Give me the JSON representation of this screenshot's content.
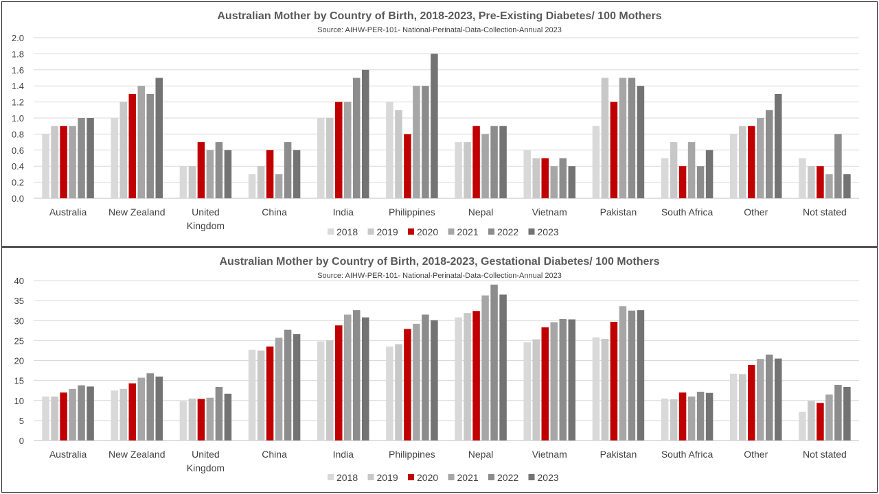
{
  "series_names": [
    "2018",
    "2019",
    "2020",
    "2021",
    "2022",
    "2023"
  ],
  "series_colors": [
    "#d9d9d9",
    "#c8c8c8",
    "#c00000",
    "#a6a6a6",
    "#8c8c8c",
    "#737373"
  ],
  "chart_data": [
    {
      "type": "bar",
      "title": "Australian Mother by Country of Birth, 2018-2023, Pre-Existing Diabetes/ 100 Mothers",
      "subtitle": "Source: AIHW-PER-101- National-Perinatal-Data-Collection-Annual 2023",
      "categories": [
        "Australia",
        "New Zealand",
        "United Kingdom",
        "China",
        "India",
        "Philippines",
        "Nepal",
        "Vietnam",
        "Pakistan",
        "South Africa",
        "Other",
        "Not stated"
      ],
      "category_lines": [
        [
          "Australia"
        ],
        [
          "New Zealand"
        ],
        [
          "United",
          "Kingdom"
        ],
        [
          "China"
        ],
        [
          "India"
        ],
        [
          "Philippines"
        ],
        [
          "Nepal"
        ],
        [
          "Vietnam"
        ],
        [
          "Pakistan"
        ],
        [
          "South Africa"
        ],
        [
          "Other"
        ],
        [
          "Not stated"
        ]
      ],
      "ylim": [
        0,
        2.0
      ],
      "yticks": [
        "0.0",
        "0.2",
        "0.4",
        "0.6",
        "0.8",
        "1.0",
        "1.2",
        "1.4",
        "1.6",
        "1.8",
        "2.0"
      ],
      "legend": "bottom",
      "series": [
        {
          "name": "2018",
          "values": [
            0.8,
            1.0,
            0.4,
            0.3,
            1.0,
            1.2,
            0.7,
            0.6,
            0.9,
            0.5,
            0.8,
            0.5
          ]
        },
        {
          "name": "2019",
          "values": [
            0.9,
            1.2,
            0.4,
            0.4,
            1.0,
            1.1,
            0.7,
            0.5,
            1.5,
            0.7,
            0.9,
            0.4
          ]
        },
        {
          "name": "2020",
          "values": [
            0.9,
            1.3,
            0.7,
            0.6,
            1.2,
            0.8,
            0.9,
            0.5,
            1.2,
            0.4,
            0.9,
            0.4
          ]
        },
        {
          "name": "2021",
          "values": [
            0.9,
            1.4,
            0.6,
            0.3,
            1.2,
            1.4,
            0.8,
            0.4,
            1.5,
            0.7,
            1.0,
            0.3
          ]
        },
        {
          "name": "2022",
          "values": [
            1.0,
            1.3,
            0.7,
            0.7,
            1.5,
            1.4,
            0.9,
            0.5,
            1.5,
            0.4,
            1.1,
            0.8
          ]
        },
        {
          "name": "2023",
          "values": [
            1.0,
            1.5,
            0.6,
            0.6,
            1.6,
            1.8,
            0.9,
            0.4,
            1.4,
            0.6,
            1.3,
            0.3
          ]
        }
      ]
    },
    {
      "type": "bar",
      "title": "Australian Mother by Country of Birth, 2018-2023, Gestational Diabetes/ 100 Mothers",
      "subtitle": "Source: AIHW-PER-101- National-Perinatal-Data-Collection-Annual 2023",
      "categories": [
        "Australia",
        "New Zealand",
        "United Kingdom",
        "China",
        "India",
        "Philippines",
        "Nepal",
        "Vietnam",
        "Pakistan",
        "South Africa",
        "Other",
        "Not stated"
      ],
      "category_lines": [
        [
          "Australia"
        ],
        [
          "New Zealand"
        ],
        [
          "United",
          "Kingdom"
        ],
        [
          "China"
        ],
        [
          "India"
        ],
        [
          "Philippines"
        ],
        [
          "Nepal"
        ],
        [
          "Vietnam"
        ],
        [
          "Pakistan"
        ],
        [
          "South Africa"
        ],
        [
          "Other"
        ],
        [
          "Not stated"
        ]
      ],
      "ylim": [
        0,
        40
      ],
      "yticks": [
        "0",
        "5",
        "10",
        "15",
        "20",
        "25",
        "30",
        "35",
        "40"
      ],
      "legend": "bottom",
      "series": [
        {
          "name": "2018",
          "values": [
            11.0,
            12.5,
            9.8,
            22.7,
            24.8,
            23.5,
            30.8,
            24.6,
            25.8,
            10.5,
            16.7,
            7.2
          ]
        },
        {
          "name": "2019",
          "values": [
            11.0,
            12.9,
            10.5,
            22.5,
            25.1,
            24.1,
            31.9,
            25.3,
            25.4,
            10.3,
            16.6,
            9.9
          ]
        },
        {
          "name": "2020",
          "values": [
            12.0,
            14.3,
            10.4,
            23.5,
            28.8,
            27.9,
            32.4,
            28.3,
            29.7,
            12.0,
            18.9,
            9.4
          ]
        },
        {
          "name": "2021",
          "values": [
            12.9,
            15.7,
            10.7,
            25.7,
            31.5,
            29.2,
            36.3,
            29.6,
            33.6,
            11.0,
            20.4,
            11.5
          ]
        },
        {
          "name": "2022",
          "values": [
            13.8,
            16.8,
            13.4,
            27.7,
            32.6,
            31.5,
            39.0,
            30.4,
            32.5,
            12.2,
            21.5,
            13.9
          ]
        },
        {
          "name": "2023",
          "values": [
            13.5,
            16.0,
            11.7,
            26.6,
            30.8,
            30.1,
            36.5,
            30.3,
            32.6,
            11.9,
            20.5,
            13.4
          ]
        }
      ]
    }
  ]
}
